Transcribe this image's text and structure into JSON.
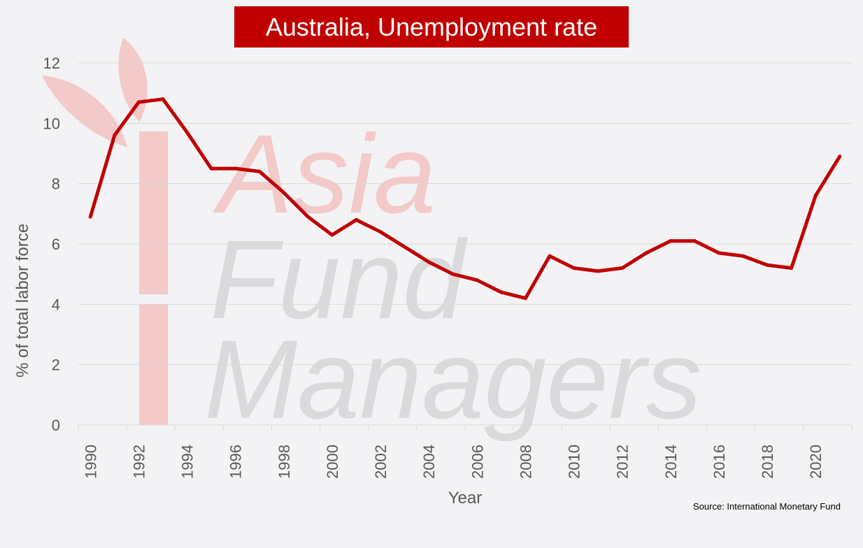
{
  "watermark": {
    "brand_text": [
      "Asia",
      "Fund",
      "Managers"
    ],
    "colors": {
      "asia": "#f3c9c9",
      "fund_managers": "#dadadc",
      "leaf": "#f3c9c9"
    }
  },
  "source_label": "Source: International Monetary Fund",
  "chart_data": {
    "type": "line",
    "title": "Australia, Unemployment rate",
    "xlabel": "Year",
    "ylabel": "% of total labor force",
    "ylim": [
      0,
      12
    ],
    "yticks": [
      0,
      2,
      4,
      6,
      8,
      10,
      12
    ],
    "xticks": [
      "1990",
      "1992",
      "1994",
      "1996",
      "1998",
      "2000",
      "2002",
      "2004",
      "2006",
      "2008",
      "2010",
      "2012",
      "2014",
      "2016",
      "2018",
      "2020"
    ],
    "grid": true,
    "legend": "none",
    "colors": {
      "line": "#c00000",
      "title_bg": "#c00000",
      "grid": "#d9d9d9",
      "axis_text": "#595959"
    },
    "x": [
      1990,
      1991,
      1992,
      1993,
      1994,
      1995,
      1996,
      1997,
      1998,
      1999,
      2000,
      2001,
      2002,
      2003,
      2004,
      2005,
      2006,
      2007,
      2008,
      2009,
      2010,
      2011,
      2012,
      2013,
      2014,
      2015,
      2016,
      2017,
      2018,
      2019,
      2020,
      2021
    ],
    "series": [
      {
        "values": [
          6.9,
          9.6,
          10.7,
          10.8,
          9.7,
          8.5,
          8.5,
          8.4,
          7.7,
          6.9,
          6.3,
          6.8,
          6.4,
          5.9,
          5.4,
          5.0,
          4.8,
          4.4,
          4.2,
          5.6,
          5.2,
          5.1,
          5.2,
          5.7,
          6.1,
          6.1,
          5.7,
          5.6,
          5.3,
          5.2,
          7.6,
          8.9
        ]
      }
    ]
  }
}
